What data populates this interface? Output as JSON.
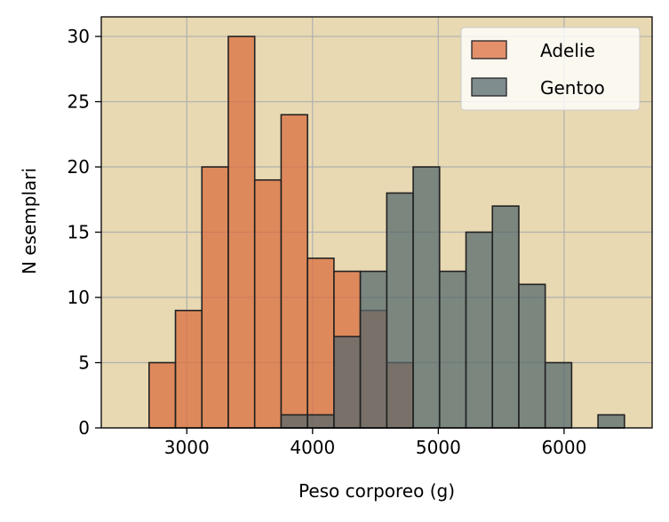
{
  "chart_data": {
    "type": "histogram",
    "xlabel": "Peso corporeo (g)",
    "ylabel": "N esemplari",
    "xlim": [
      2320,
      6700
    ],
    "ylim": [
      0,
      31.5
    ],
    "xticks": [
      3000,
      4000,
      5000,
      6000
    ],
    "yticks": [
      0,
      5,
      10,
      15,
      20,
      25,
      30
    ],
    "grid": true,
    "legend_position": "top-right",
    "background_color": "#e8d9b2",
    "bins": [
      2700,
      2910,
      3120,
      3330,
      3540,
      3750,
      3960,
      4170,
      4380,
      4590,
      4800,
      5010,
      5220,
      5430,
      5640,
      5850,
      6060,
      6270,
      6480
    ],
    "series": [
      {
        "name": "Adelie",
        "color": "#db6e3f",
        "counts": [
          5,
          9,
          20,
          30,
          19,
          24,
          13,
          12,
          9,
          5,
          0,
          0,
          0,
          0,
          0,
          0,
          0,
          0
        ]
      },
      {
        "name": "Gentoo",
        "color": "#57696d",
        "counts": [
          0,
          0,
          0,
          0,
          0,
          1,
          1,
          7,
          12,
          18,
          20,
          12,
          15,
          17,
          11,
          5,
          0,
          1
        ]
      }
    ]
  }
}
